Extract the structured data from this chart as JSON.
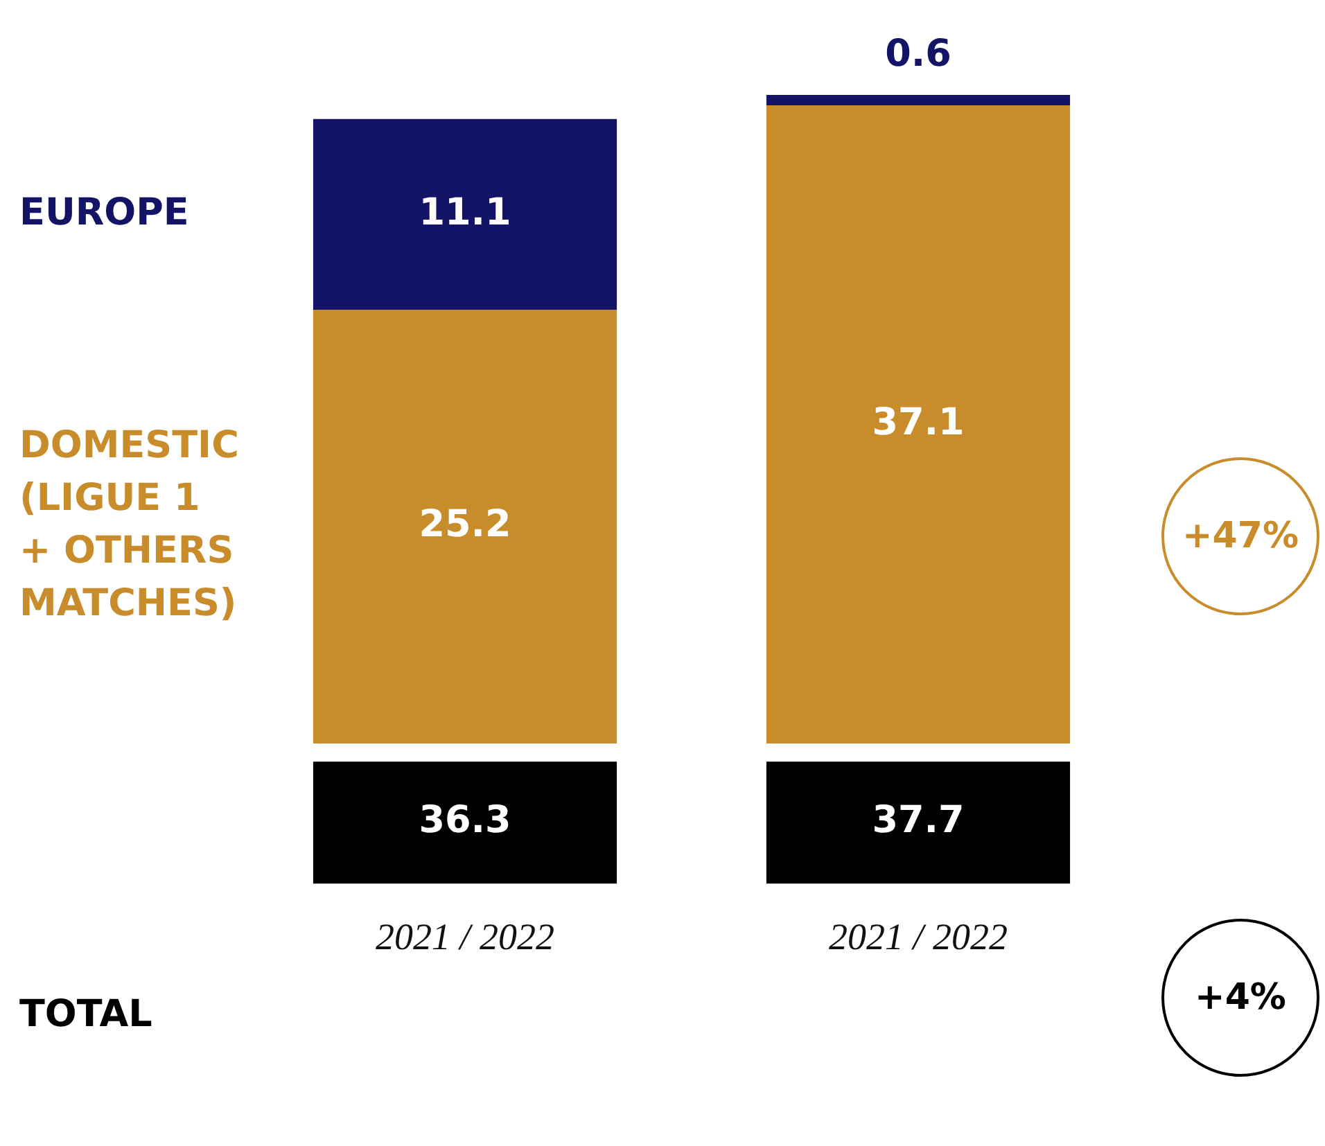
{
  "chart_data": {
    "type": "bar",
    "stacked": true,
    "categories": [
      "2021 / 2022",
      "2021 / 2022"
    ],
    "series": [
      {
        "name": "DOMESTIC (LIGUE 1 + OTHERS MATCHES)",
        "color": "#c98c2a",
        "values": [
          25.2,
          37.1
        ]
      },
      {
        "name": "EUROPE",
        "color": "#141466",
        "values": [
          11.1,
          0.6
        ]
      }
    ],
    "data_labels": true,
    "totals": [
      "36.3",
      "37.7"
    ],
    "legend": false,
    "grid": false,
    "annotations": [
      "+47%",
      "+4%",
      "TOTAL"
    ]
  }
}
